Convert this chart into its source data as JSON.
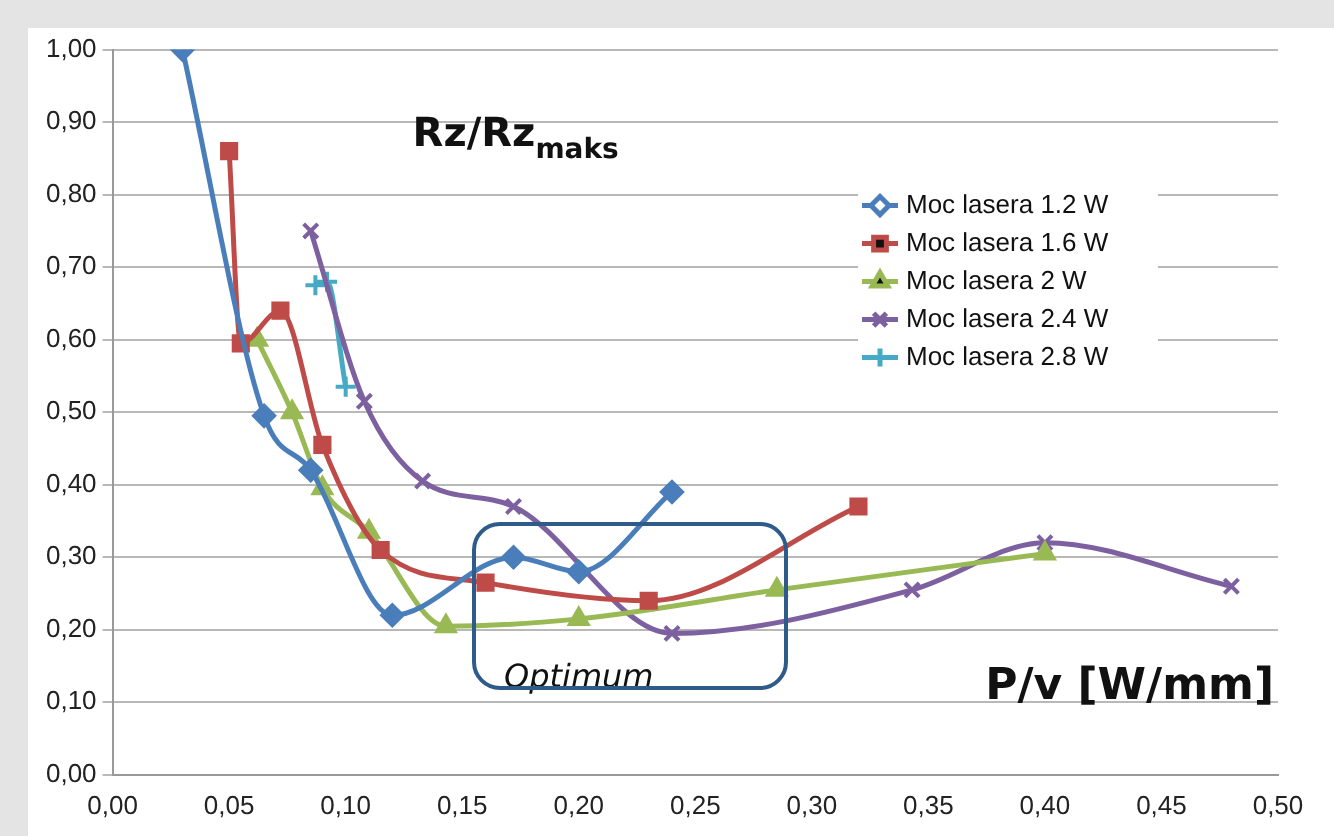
{
  "chart_data": {
    "type": "line",
    "ylabel": "Rz/Rz$_{maks}$",
    "xlabel": "P/v [W/mm]",
    "annotations": [
      "Optimum"
    ],
    "xlim": [
      0,
      0.5
    ],
    "ylim": [
      0,
      1
    ],
    "xticks": [
      {
        "value": 0,
        "label": "0,00"
      },
      {
        "value": 0.05,
        "label": "0,05"
      },
      {
        "value": 0.1,
        "label": "0,10"
      },
      {
        "value": 0.15,
        "label": "0,15"
      },
      {
        "value": 0.2,
        "label": "0,20"
      },
      {
        "value": 0.25,
        "label": "0,25"
      },
      {
        "value": 0.3,
        "label": "0,30"
      },
      {
        "value": 0.35,
        "label": "0,35"
      },
      {
        "value": 0.4,
        "label": "0,40"
      },
      {
        "value": 0.45,
        "label": "0,45"
      },
      {
        "value": 0.5,
        "label": "0,50"
      }
    ],
    "yticks": [
      {
        "value": 0,
        "label": "0,00"
      },
      {
        "value": 0.1,
        "label": "0,10"
      },
      {
        "value": 0.2,
        "label": "0,20"
      },
      {
        "value": 0.3,
        "label": "0,30"
      },
      {
        "value": 0.4,
        "label": "0,40"
      },
      {
        "value": 0.5,
        "label": "0,50"
      },
      {
        "value": 0.6,
        "label": "0,60"
      },
      {
        "value": 0.7,
        "label": "0,70"
      },
      {
        "value": 0.8,
        "label": "0,80"
      },
      {
        "value": 0.9,
        "label": "0,90"
      },
      {
        "value": 1,
        "label": "1,00"
      }
    ],
    "grid": "y",
    "legend": "top right",
    "series": [
      {
        "name": "Moc lasera 1.2 W",
        "color": "#4a7ebb",
        "marker": "diamond",
        "x": [
          0.03,
          0.065,
          0.085,
          0.12,
          0.172,
          0.2,
          0.24
        ],
        "values": [
          1.0,
          0.495,
          0.42,
          0.22,
          0.3,
          0.28,
          0.39
        ]
      },
      {
        "name": "Moc lasera 1.6 W",
        "color": "#be4b48",
        "marker": "square",
        "x": [
          0.05,
          0.055,
          0.072,
          0.09,
          0.115,
          0.16,
          0.23,
          0.32
        ],
        "values": [
          0.86,
          0.595,
          0.64,
          0.455,
          0.31,
          0.265,
          0.24,
          0.37
        ]
      },
      {
        "name": "Moc lasera 2 W",
        "color": "#98b954",
        "marker": "triangle",
        "x": [
          0.062,
          0.077,
          0.09,
          0.11,
          0.143,
          0.2,
          0.285,
          0.4
        ],
        "values": [
          0.6,
          0.5,
          0.395,
          0.335,
          0.205,
          0.215,
          0.255,
          0.305
        ]
      },
      {
        "name": "Moc lasera 2.4 W",
        "color": "#7d60a0",
        "marker": "x",
        "x": [
          0.085,
          0.108,
          0.133,
          0.172,
          0.24,
          0.343,
          0.4,
          0.48
        ],
        "values": [
          0.75,
          0.515,
          0.405,
          0.37,
          0.195,
          0.255,
          0.32,
          0.26
        ]
      },
      {
        "name": "Moc lasera 2.8 W",
        "color": "#46aac5",
        "marker": "cross",
        "x": [
          0.087,
          0.092,
          0.1
        ],
        "values": [
          0.675,
          0.68,
          0.535
        ]
      }
    ]
  }
}
